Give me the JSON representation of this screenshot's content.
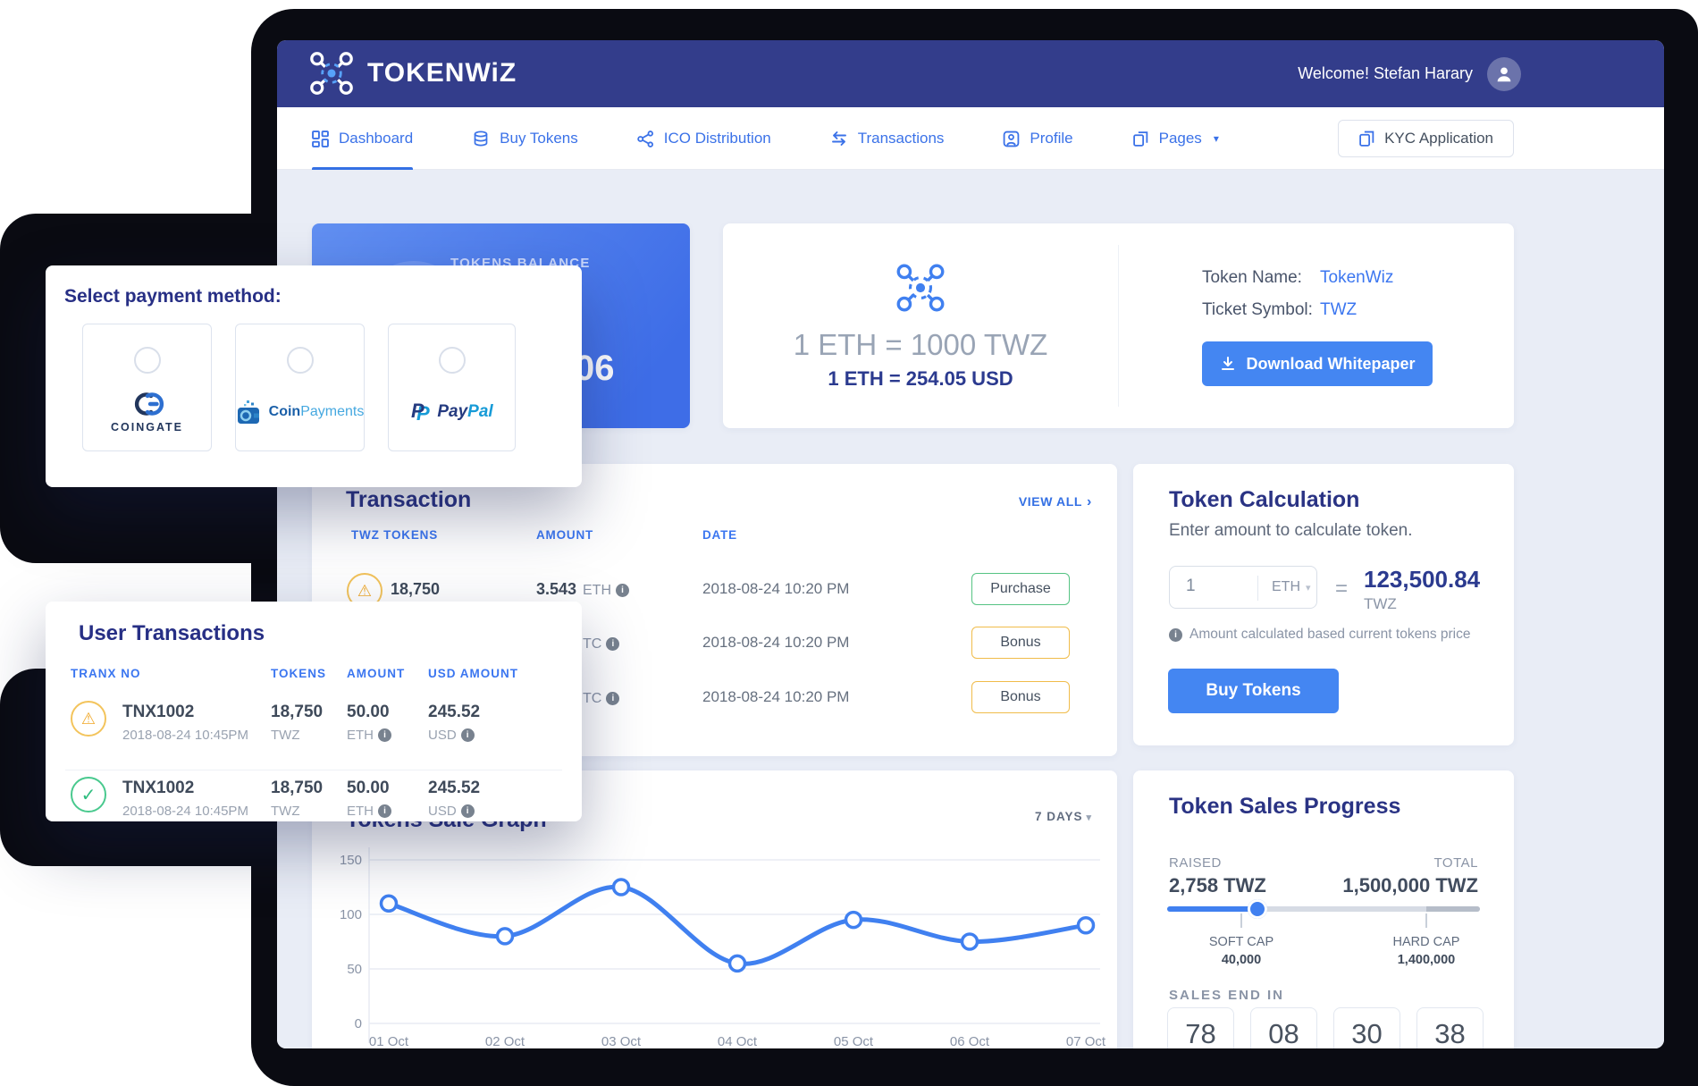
{
  "colors": {
    "header_navy": "#333d8b",
    "accent_blue": "#3470e4",
    "button_blue": "#4486f2",
    "success_green": "#3ec487",
    "warning_amber": "#f0b53e",
    "card_blue_gradient": [
      "#6290f2",
      "#3e6de7"
    ]
  },
  "header": {
    "brand": "TOKENWiZ",
    "welcome": "Welcome! Stefan Harary"
  },
  "nav": {
    "items": [
      {
        "label": "Dashboard",
        "active": true
      },
      {
        "label": "Buy Tokens",
        "active": false
      },
      {
        "label": "ICO Distribution",
        "active": false
      },
      {
        "label": "Transactions",
        "active": false
      },
      {
        "label": "Profile",
        "active": false
      },
      {
        "label": "Pages",
        "active": false
      }
    ],
    "kyc_label": "KYC Application"
  },
  "balance_card": {
    "label": "TOKENS BALANCE",
    "visible_value": "06"
  },
  "rate_card": {
    "rate_primary": "1 ETH = 1000 TWZ",
    "rate_secondary": "1 ETH = 254.05 USD",
    "token_name_label": "Token Name:",
    "token_name": "TokenWiz",
    "ticket_symbol_label": "Ticket Symbol:",
    "ticket_symbol": "TWZ",
    "download_label": "Download Whitepaper"
  },
  "payment_popup": {
    "title": "Select payment method:",
    "methods": [
      {
        "name": "CoinGate",
        "caption": "COINGATE"
      },
      {
        "name": "CoinPayments",
        "text_dark": "Coin",
        "text_light": "Payments"
      },
      {
        "name": "PayPal",
        "text_dark": "Pay",
        "text_light": "Pal"
      }
    ]
  },
  "transactions_card": {
    "title": "Transaction",
    "view_all": "VIEW ALL",
    "headers": [
      "TWZ TOKENS",
      "AMOUNT",
      "DATE"
    ],
    "rows": [
      {
        "tokens": "18,750",
        "amount_value": "3.543",
        "amount_unit": "ETH",
        "date": "2018-08-24 10:20 PM",
        "action": "Purchase",
        "status": "warning"
      },
      {
        "tokens": "",
        "amount_value": "",
        "amount_unit": "TC",
        "date": "2018-08-24 10:20 PM",
        "action": "Bonus",
        "status": ""
      },
      {
        "tokens": "",
        "amount_value": "",
        "amount_unit": "TC",
        "date": "2018-08-24 10:20 PM",
        "action": "Bonus",
        "status": ""
      }
    ]
  },
  "token_calc": {
    "title": "Token Calculation",
    "subtitle": "Enter amount to calculate token.",
    "input_value": "1",
    "currency": "ETH",
    "equals": "=",
    "result": "123,500.84",
    "result_unit": "TWZ",
    "note": "Amount calculated based current tokens price",
    "buy_label": "Buy Tokens"
  },
  "user_transactions": {
    "title": "User Transactions",
    "headers": [
      "TRANX NO",
      "TOKENS",
      "AMOUNT",
      "USD AMOUNT"
    ],
    "rows": [
      {
        "tranx": "TNX1002",
        "date": "2018-08-24 10:45PM",
        "tokens": "18,750",
        "tokens_unit": "TWZ",
        "amount": "50.00",
        "amount_unit": "ETH",
        "usd": "245.52",
        "usd_unit": "USD",
        "status": "warning"
      },
      {
        "tranx": "TNX1002",
        "date": "2018-08-24 10:45PM",
        "tokens": "18,750",
        "tokens_unit": "TWZ",
        "amount": "50.00",
        "amount_unit": "ETH",
        "usd": "245.52",
        "usd_unit": "USD",
        "status": "success"
      }
    ]
  },
  "chart_data": {
    "type": "line",
    "title": "Tokens Sale Graph",
    "range_selector": "7 DAYS",
    "categories": [
      "01 Oct",
      "02 Oct",
      "03 Oct",
      "04 Oct",
      "05 Oct",
      "06 Oct",
      "07 Oct"
    ],
    "values": [
      110,
      80,
      125,
      55,
      95,
      75,
      90
    ],
    "yticks": [
      0,
      50,
      100,
      150
    ],
    "ylim": [
      0,
      150
    ],
    "grid": true,
    "legend": false,
    "line_color": "#4080f0"
  },
  "sales_progress": {
    "title": "Token Sales Progress",
    "raised_label": "RAISED",
    "raised": "2,758 TWZ",
    "total_label": "TOTAL",
    "total": "1,500,000 TWZ",
    "progress_pct": 29,
    "soft_cap_label": "SOFT CAP",
    "soft_cap": "40,000",
    "hard_cap_label": "HARD CAP",
    "hard_cap": "1,400,000",
    "sales_end_label": "SALES END IN",
    "countdown": [
      "78",
      "08",
      "30",
      "38"
    ]
  }
}
